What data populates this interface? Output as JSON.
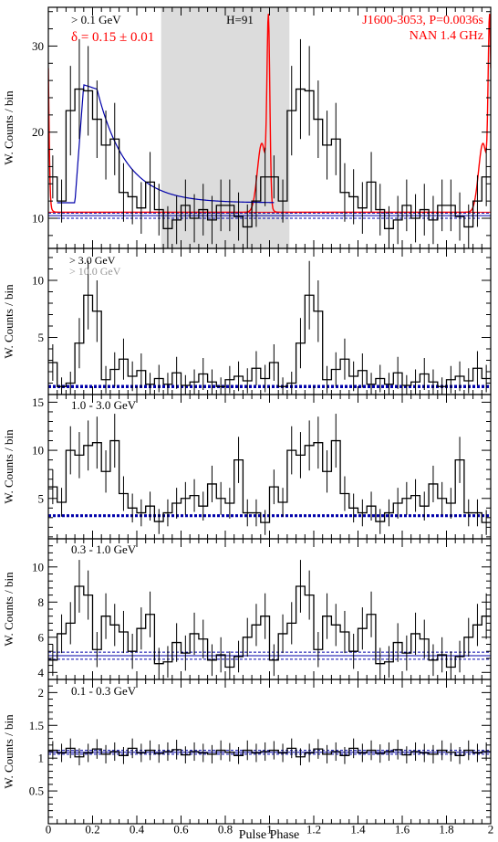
{
  "chart_data": {
    "type": "step",
    "xlabel": "Pulse Phase",
    "x_ticks": [
      "0",
      "0.2",
      "0.4",
      "0.6",
      "0.8",
      "1",
      "1.2",
      "1.4",
      "1.6",
      "1.8",
      "2"
    ],
    "xlim": [
      0,
      2
    ],
    "ylabel": "W. Counts / bin",
    "colors": {
      "histogram": "#000000",
      "radio": "#ff0000",
      "model": "#0000aa",
      "background_line": "#0000aa",
      "shade": "#dcdcdc",
      "gray_label": "#999999"
    },
    "panels": [
      {
        "ylim": [
          6.5,
          34.5
        ],
        "y_ticks": [
          "10",
          "20",
          "30"
        ],
        "labels": [
          {
            "text": "> 0.1 GeV",
            "color": "#000000"
          },
          {
            "text": "δ = 0.15 ± 0.01",
            "color": "#ff0000"
          },
          {
            "text": "H=91",
            "color": "#000000"
          },
          {
            "text": "J1600-3053, P=0.0036s",
            "color": "#ff0000"
          },
          {
            "text": "NAN 1.4 GHz",
            "color": "#ff0000"
          }
        ],
        "shaded_phase": [
          0.51,
          1.09
        ],
        "background": 10.3,
        "background_band": [
          10.0,
          10.6
        ],
        "red_line": 10.7,
        "values": [
          14.8,
          12.0,
          22.5,
          25.0,
          24.8,
          21.5,
          18.5,
          19.2,
          13.0,
          12.5,
          11.2,
          14.2,
          11.0,
          8.8,
          9.8,
          11.5,
          10.0,
          11.0,
          9.8,
          11.5,
          11.5,
          10.2,
          9.0,
          12.0,
          14.8
        ],
        "errors": [
          2.5,
          2.5,
          5.2,
          5.8,
          5.2,
          4.5,
          4.0,
          4.2,
          3.4,
          3.2,
          3.0,
          3.5,
          3.0,
          2.6,
          2.8,
          3.0,
          2.8,
          3.0,
          2.8,
          3.0,
          3.0,
          2.8,
          2.6,
          3.0,
          3.4
        ]
      },
      {
        "ylim": [
          0,
          12.8
        ],
        "y_ticks": [
          "5",
          "10"
        ],
        "labels": [
          {
            "text": "> 3.0 GeV",
            "color": "#000000"
          },
          {
            "text": "> 10.0 GeV",
            "color": "#999999"
          }
        ],
        "background": 0.7,
        "background_band": [
          0.6,
          0.8
        ],
        "values": [
          2.8,
          0.7,
          1.0,
          4.5,
          8.7,
          7.3,
          1.3,
          2.2,
          3.1,
          1.6,
          2.1,
          0.9,
          1.4,
          0.9,
          1.9,
          0.8,
          1.1,
          1.8,
          1.1,
          0.7,
          1.3,
          1.6,
          1.2,
          2.3,
          1.4
        ],
        "errors": [
          1.6,
          0.8,
          1.0,
          2.2,
          3.0,
          2.7,
          1.2,
          1.5,
          1.8,
          1.3,
          1.5,
          1.0,
          1.2,
          1.0,
          1.4,
          0.9,
          1.1,
          1.4,
          1.1,
          0.8,
          1.2,
          1.3,
          1.1,
          1.5,
          1.2
        ]
      },
      {
        "ylim": [
          0.8,
          15.8
        ],
        "y_ticks": [
          "5",
          "10",
          "15"
        ],
        "labels": [
          {
            "text": "1.0 - 3.0 GeV",
            "color": "#000000"
          }
        ],
        "background": 3.2,
        "background_band": [
          3.1,
          3.3
        ],
        "values": [
          6.2,
          4.6,
          10.0,
          9.5,
          10.5,
          10.8,
          7.8,
          11.0,
          5.5,
          4.0,
          3.5,
          4.2,
          2.6,
          3.5,
          4.5,
          5.0,
          5.3,
          4.2,
          6.5,
          5.0,
          4.5,
          9.0,
          3.5,
          3.5,
          2.5
        ],
        "errors": [
          1.8,
          1.5,
          2.5,
          2.4,
          2.6,
          2.7,
          2.2,
          2.8,
          1.8,
          1.5,
          1.4,
          1.5,
          1.3,
          1.4,
          1.6,
          1.7,
          1.7,
          1.5,
          1.9,
          1.7,
          1.6,
          2.4,
          1.4,
          1.4,
          1.3
        ]
      },
      {
        "ylim": [
          3.6,
          11.6
        ],
        "y_ticks": [
          "4",
          "6",
          "8",
          "10"
        ],
        "labels": [
          {
            "text": "0.3 - 1.0 GeV",
            "color": "#000000"
          }
        ],
        "background": 4.95,
        "background_band": [
          4.75,
          5.15
        ],
        "values": [
          4.7,
          6.2,
          6.8,
          8.9,
          8.4,
          5.3,
          7.2,
          6.7,
          6.3,
          5.2,
          6.5,
          7.3,
          4.5,
          4.6,
          5.7,
          5.1,
          6.2,
          5.9,
          4.7,
          5.0,
          4.3,
          4.9,
          6.0,
          6.7,
          7.2
        ],
        "errors": [
          0.9,
          1.1,
          1.2,
          1.5,
          1.4,
          1.0,
          1.3,
          1.2,
          1.2,
          1.0,
          1.2,
          1.3,
          0.9,
          0.9,
          1.1,
          1.0,
          1.2,
          1.1,
          0.9,
          1.0,
          0.9,
          0.9,
          1.1,
          1.2,
          1.3
        ]
      },
      {
        "ylim": [
          0,
          2.2
        ],
        "y_ticks": [
          "0.5",
          "1",
          "1.5",
          "2"
        ],
        "labels": [
          {
            "text": "0.1 - 0.3 GeV",
            "color": "#000000"
          }
        ],
        "background": 1.09,
        "background_band": [
          1.06,
          1.12
        ],
        "values": [
          1.12,
          1.08,
          1.15,
          1.02,
          1.08,
          1.14,
          1.06,
          1.1,
          1.04,
          1.15,
          1.08,
          1.12,
          1.07,
          1.1,
          1.13,
          1.05,
          1.1,
          1.08,
          1.06,
          1.12,
          1.09,
          1.04,
          1.12,
          1.08,
          1.1
        ],
        "errors": [
          0.14,
          0.14,
          0.15,
          0.13,
          0.14,
          0.15,
          0.14,
          0.14,
          0.13,
          0.15,
          0.14,
          0.15,
          0.14,
          0.14,
          0.15,
          0.13,
          0.14,
          0.14,
          0.14,
          0.15,
          0.14,
          0.13,
          0.15,
          0.14,
          0.14
        ]
      }
    ]
  }
}
